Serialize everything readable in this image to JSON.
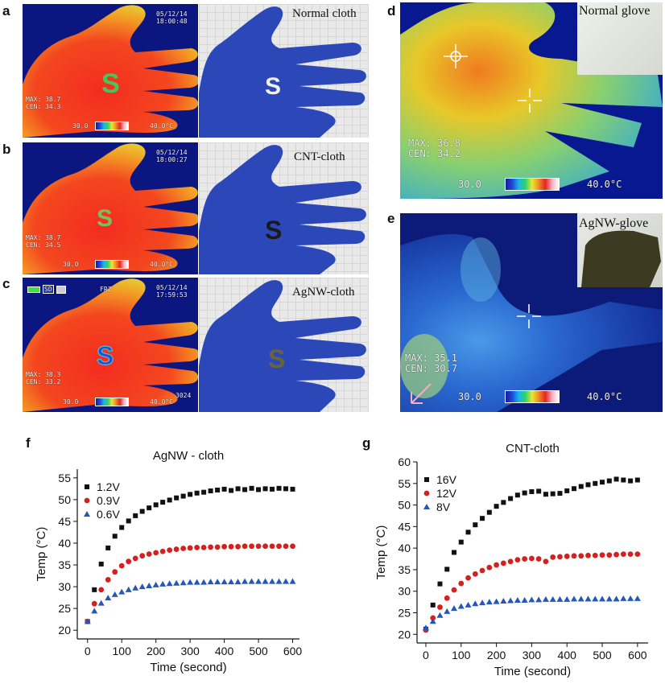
{
  "panels": {
    "a": {
      "letter": "a",
      "date": "05/12/14",
      "time": "18:00:48",
      "max": "MAX: 38.7",
      "cen": "CEN: 34.3",
      "scale_min": "30.0",
      "scale_max": "40.0°C",
      "caption": "Normal cloth"
    },
    "b": {
      "letter": "b",
      "date": "05/12/14",
      "time": "18:00:27",
      "max": "MAX: 38.7",
      "cen": "CEN: 34.5",
      "scale_min": "30.0",
      "scale_max": "40.0°C",
      "caption": "CNT-cloth"
    },
    "c": {
      "letter": "c",
      "date": "05/12/14",
      "time": "17:59:53",
      "max": "MAX: 38.3",
      "cen": "CEN: 33.2",
      "scale_min": "30.0",
      "scale_max": "40.0°C",
      "caption": "AgNW-cloth",
      "frz": "FRZ",
      "frame": "3024",
      "sd": "SD"
    },
    "d": {
      "letter": "d",
      "max": "MAX: 36.8",
      "cen": "CEN: 34.2",
      "scale_min": "30.0",
      "scale_max": "40.0°C",
      "caption": "Normal glove"
    },
    "e": {
      "letter": "e",
      "max": "MAX: 35.1",
      "cen": "CEN: 30.7",
      "scale_min": "30.0",
      "scale_max": "40.0°C",
      "caption": "AgNW-glove"
    }
  },
  "chart_data": [
    {
      "panel": "f",
      "type": "scatter",
      "title": "AgNW - cloth",
      "xlabel": "Time (second)",
      "ylabel": "Temp (°C)",
      "xlim": [
        -30,
        620
      ],
      "ylim": [
        18,
        57
      ],
      "xticks": [
        0,
        100,
        200,
        300,
        400,
        500,
        600
      ],
      "yticks": [
        20,
        25,
        30,
        35,
        40,
        45,
        50,
        55
      ],
      "legend": "top-left",
      "series": [
        {
          "name": "1.2V",
          "marker": "square",
          "color": "#111111",
          "x": [
            0,
            20,
            40,
            60,
            80,
            100,
            120,
            140,
            160,
            180,
            200,
            220,
            240,
            260,
            280,
            300,
            320,
            340,
            360,
            380,
            400,
            420,
            440,
            460,
            480,
            500,
            520,
            540,
            560,
            580,
            600
          ],
          "y": [
            22.0,
            29.3,
            35.2,
            38.9,
            41.6,
            43.6,
            45.1,
            46.3,
            47.3,
            48.1,
            48.8,
            49.4,
            49.9,
            50.4,
            50.8,
            51.2,
            51.5,
            51.7,
            52.0,
            52.2,
            52.4,
            52.1,
            52.5,
            52.3,
            52.6,
            52.3,
            52.5,
            52.4,
            52.6,
            52.5,
            52.4
          ]
        },
        {
          "name": "0.9V",
          "marker": "circle",
          "color": "#d62020",
          "x": [
            0,
            20,
            40,
            60,
            80,
            100,
            120,
            140,
            160,
            180,
            200,
            220,
            240,
            260,
            280,
            300,
            320,
            340,
            360,
            380,
            400,
            420,
            440,
            460,
            480,
            500,
            520,
            540,
            560,
            580,
            600
          ],
          "y": [
            22.0,
            26.1,
            29.3,
            31.6,
            33.4,
            34.8,
            35.8,
            36.5,
            37.1,
            37.5,
            37.8,
            38.1,
            38.4,
            38.6,
            38.8,
            38.9,
            39.0,
            39.0,
            39.1,
            39.1,
            39.2,
            39.2,
            39.2,
            39.3,
            39.3,
            39.3,
            39.3,
            39.3,
            39.3,
            39.3,
            39.3
          ]
        },
        {
          "name": "0.6V",
          "marker": "triangle",
          "color": "#2457b8",
          "x": [
            0,
            20,
            40,
            60,
            80,
            100,
            120,
            140,
            160,
            180,
            200,
            220,
            240,
            260,
            280,
            300,
            320,
            340,
            360,
            380,
            400,
            420,
            440,
            460,
            480,
            500,
            520,
            540,
            560,
            580,
            600
          ],
          "y": [
            22.0,
            24.4,
            26.2,
            27.4,
            28.2,
            28.8,
            29.3,
            29.7,
            30.0,
            30.2,
            30.4,
            30.6,
            30.7,
            30.8,
            30.9,
            31.0,
            31.0,
            31.0,
            31.1,
            31.1,
            31.1,
            31.1,
            31.1,
            31.2,
            31.2,
            31.2,
            31.2,
            31.2,
            31.2,
            31.2,
            31.2
          ]
        }
      ]
    },
    {
      "panel": "g",
      "type": "scatter",
      "title": "CNT-cloth",
      "xlabel": "Time (second)",
      "ylabel": "Temp (°C)",
      "xlim": [
        -25,
        630
      ],
      "ylim": [
        18,
        60
      ],
      "xticks": [
        0,
        100,
        200,
        300,
        400,
        500,
        600
      ],
      "yticks": [
        20,
        25,
        30,
        35,
        40,
        45,
        50,
        55,
        60
      ],
      "legend": "top-left",
      "series": [
        {
          "name": "16V",
          "marker": "square",
          "color": "#111111",
          "x": [
            0,
            20,
            40,
            60,
            80,
            100,
            120,
            140,
            160,
            180,
            200,
            220,
            240,
            260,
            280,
            300,
            320,
            340,
            360,
            380,
            400,
            420,
            440,
            460,
            480,
            500,
            520,
            540,
            560,
            580,
            600
          ],
          "y": [
            21.2,
            26.8,
            31.7,
            35.1,
            39.0,
            41.4,
            43.7,
            45.4,
            46.9,
            48.3,
            49.7,
            50.6,
            51.5,
            52.3,
            52.8,
            53.1,
            53.2,
            52.5,
            52.6,
            52.7,
            53.3,
            53.8,
            54.3,
            54.7,
            55.0,
            55.3,
            55.6,
            56.0,
            55.8,
            55.6,
            55.8
          ]
        },
        {
          "name": "12V",
          "marker": "circle",
          "color": "#d62020",
          "x": [
            0,
            20,
            40,
            60,
            80,
            100,
            120,
            140,
            160,
            180,
            200,
            220,
            240,
            260,
            280,
            300,
            320,
            340,
            360,
            380,
            400,
            420,
            440,
            460,
            480,
            500,
            520,
            540,
            560,
            580,
            600
          ],
          "y": [
            21.0,
            23.8,
            26.3,
            28.4,
            30.3,
            31.8,
            33.1,
            34.0,
            34.8,
            35.5,
            36.1,
            36.5,
            36.9,
            37.3,
            37.5,
            37.6,
            37.5,
            36.9,
            37.9,
            38.0,
            38.1,
            38.2,
            38.2,
            38.3,
            38.3,
            38.4,
            38.4,
            38.5,
            38.6,
            38.6,
            38.6
          ]
        },
        {
          "name": "8V",
          "marker": "triangle",
          "color": "#2457b8",
          "x": [
            0,
            20,
            40,
            60,
            80,
            100,
            120,
            140,
            160,
            180,
            200,
            220,
            240,
            260,
            280,
            300,
            320,
            340,
            360,
            380,
            400,
            420,
            440,
            460,
            480,
            500,
            520,
            540,
            560,
            580,
            600
          ],
          "y": [
            21.5,
            23.0,
            24.4,
            25.3,
            26.0,
            26.5,
            26.8,
            27.1,
            27.3,
            27.5,
            27.6,
            27.7,
            27.8,
            27.9,
            27.9,
            28.0,
            28.0,
            28.1,
            28.1,
            28.1,
            28.1,
            28.2,
            28.2,
            28.2,
            28.2,
            28.2,
            28.2,
            28.2,
            28.3,
            28.3,
            28.3
          ]
        }
      ]
    }
  ]
}
